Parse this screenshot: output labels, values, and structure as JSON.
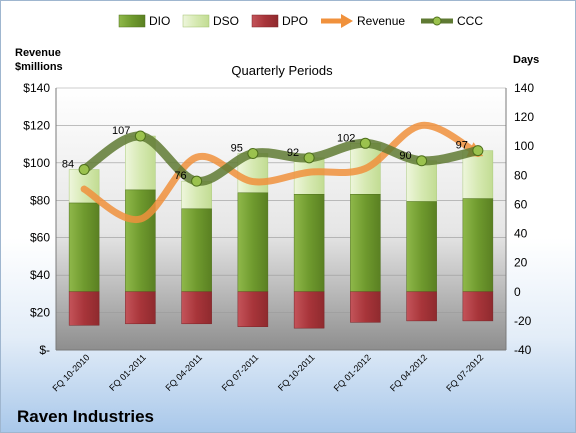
{
  "chart_data": {
    "type": "bar",
    "title": "Quarterly Periods",
    "company": "Raven Industries",
    "left_axis": {
      "label_line1": "Revenue",
      "label_line2": "$millions",
      "ylim": [
        0,
        140
      ],
      "ticks": [
        {
          "value": 0,
          "label": "$-"
        },
        {
          "value": 20,
          "label": "$20"
        },
        {
          "value": 40,
          "label": "$40"
        },
        {
          "value": 60,
          "label": "$60"
        },
        {
          "value": 80,
          "label": "$80"
        },
        {
          "value": 100,
          "label": "$100"
        },
        {
          "value": 120,
          "label": "$120"
        },
        {
          "value": 140,
          "label": "$140"
        }
      ]
    },
    "right_axis": {
      "label": "Days",
      "ylim": [
        -40,
        140
      ],
      "ticks": [
        -40,
        -20,
        0,
        20,
        40,
        60,
        80,
        100,
        120,
        140
      ]
    },
    "categories": [
      "FQ 10-2010",
      "FQ 01-2011",
      "FQ 04-2011",
      "FQ 07-2011",
      "FQ 10-2011",
      "FQ 01-2012",
      "FQ 04-2012",
      "FQ 07-2012"
    ],
    "series": [
      {
        "name": "DIO",
        "type": "stacked-bar",
        "axis": "days",
        "color": "#7aa33a",
        "values": [
          61,
          70,
          57,
          68,
          67,
          67,
          62,
          64
        ]
      },
      {
        "name": "DSO",
        "type": "stacked-bar",
        "axis": "days",
        "color": "#d8eab6",
        "values": [
          23,
          37,
          19,
          27,
          25,
          35,
          28,
          33
        ]
      },
      {
        "name": "DPO",
        "type": "stacked-bar-negative",
        "axis": "days",
        "color": "#b03c3e",
        "values": [
          -23,
          -22,
          -22,
          -24,
          -25,
          -21,
          -20,
          -20
        ]
      },
      {
        "name": "Revenue",
        "type": "line",
        "axis": "revenue",
        "color": "#f0913c",
        "values": [
          86,
          70,
          103,
          90,
          95,
          97,
          120,
          105
        ]
      },
      {
        "name": "CCC",
        "type": "line",
        "axis": "days",
        "color": "#5f7a33",
        "values": [
          84,
          107,
          76,
          95,
          92,
          102,
          90,
          97
        ]
      }
    ],
    "ccc_labels": [
      "84",
      "107",
      "76",
      "95",
      "92",
      "102",
      "90",
      "97"
    ],
    "grid": true,
    "legend": "top"
  }
}
